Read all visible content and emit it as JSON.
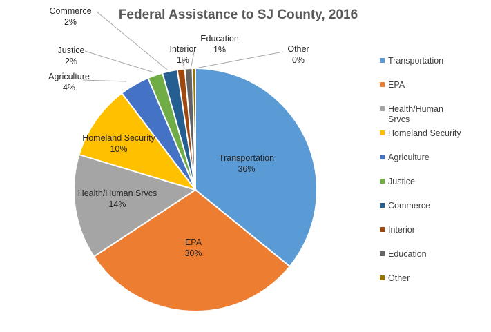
{
  "chart_data": {
    "type": "pie",
    "title": "Federal Assistance to SJ County, 2016",
    "legend_position": "right",
    "slices": [
      {
        "label": "Transportation",
        "legend_label": [
          "Transportation"
        ],
        "value": 36,
        "percent_label": "36%",
        "color": "#5B9BD5"
      },
      {
        "label": "EPA",
        "legend_label": [
          "EPA"
        ],
        "value": 30,
        "percent_label": "30%",
        "color": "#ED7D31"
      },
      {
        "label": "Health/Human Srvcs",
        "legend_label": [
          "Health/Human",
          "Srvcs"
        ],
        "value": 14,
        "percent_label": "14%",
        "color": "#A5A5A5"
      },
      {
        "label": "Homeland Security",
        "legend_label": [
          "Homeland Security"
        ],
        "value": 10,
        "percent_label": "10%",
        "color": "#FFC000"
      },
      {
        "label": "Agriculture",
        "legend_label": [
          "Agriculture"
        ],
        "value": 4,
        "percent_label": "4%",
        "color": "#4472C4"
      },
      {
        "label": "Justice",
        "legend_label": [
          "Justice"
        ],
        "value": 2,
        "percent_label": "2%",
        "color": "#70AD47"
      },
      {
        "label": "Commerce",
        "legend_label": [
          "Commerce"
        ],
        "value": 2,
        "percent_label": "2%",
        "color": "#255E91"
      },
      {
        "label": "Interior",
        "legend_label": [
          "Interior"
        ],
        "value": 1,
        "percent_label": "1%",
        "color": "#9E480E"
      },
      {
        "label": "Education",
        "legend_label": [
          "Education"
        ],
        "value": 1,
        "percent_label": "1%",
        "color": "#636363"
      },
      {
        "label": "Other",
        "legend_label": [
          "Other"
        ],
        "value": 0.4,
        "percent_label": "0%",
        "color": "#997300"
      }
    ]
  }
}
